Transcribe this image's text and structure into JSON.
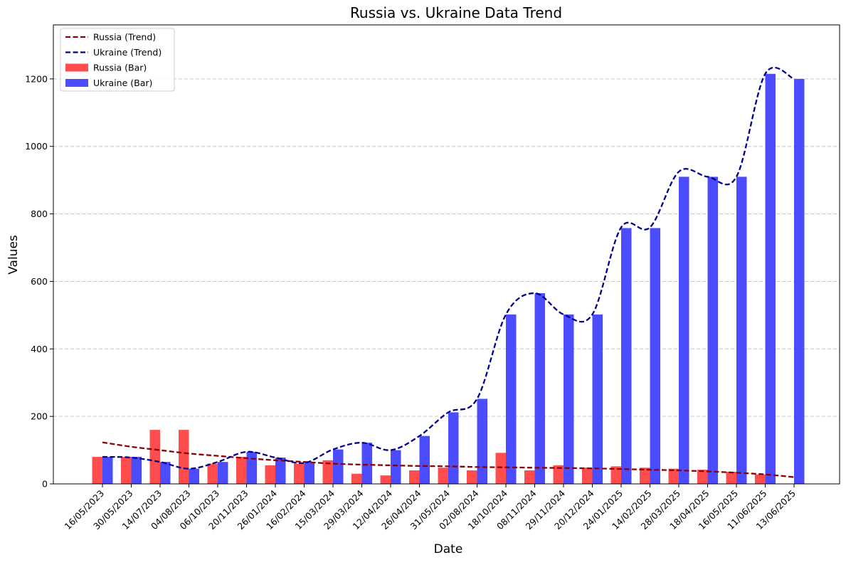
{
  "chart_data": {
    "type": "bar",
    "title": "Russia vs. Ukraine Data Trend",
    "xlabel": "Date",
    "ylabel": "Values",
    "ylim": [
      0,
      1360
    ],
    "yticks": [
      0,
      200,
      400,
      600,
      800,
      1000,
      1200
    ],
    "grid": "y-dashed",
    "legend_position": "top-left",
    "categories": [
      "16/05/2023",
      "30/05/2023",
      "14/07/2023",
      "04/08/2023",
      "06/10/2023",
      "20/11/2023",
      "26/01/2024",
      "16/02/2024",
      "15/03/2024",
      "29/03/2024",
      "12/04/2024",
      "26/04/2024",
      "31/05/2024",
      "02/08/2024",
      "18/10/2024",
      "08/11/2024",
      "29/11/2024",
      "20/12/2024",
      "24/01/2025",
      "14/02/2025",
      "28/03/2025",
      "18/04/2025",
      "16/05/2025",
      "11/06/2025",
      "13/06/2025"
    ],
    "series": [
      {
        "name": "Russia (Bar)",
        "kind": "bar",
        "color": "#ff4c4c",
        "values": [
          80,
          80,
          160,
          160,
          60,
          80,
          55,
          60,
          70,
          30,
          25,
          40,
          48,
          40,
          92,
          40,
          55,
          48,
          52,
          48,
          45,
          42,
          36,
          28,
          0
        ]
      },
      {
        "name": "Ukraine (Bar)",
        "kind": "bar",
        "color": "#4c4cff",
        "values": [
          80,
          80,
          65,
          45,
          65,
          95,
          78,
          65,
          102,
          122,
          100,
          142,
          212,
          252,
          502,
          565,
          502,
          502,
          758,
          758,
          910,
          910,
          910,
          1215,
          1200
        ]
      },
      {
        "name": "Russia (Trend)",
        "kind": "line",
        "style": "dashed",
        "color": "#8b0000",
        "values": [
          123,
          110,
          100,
          90,
          83,
          76,
          70,
          65,
          60,
          57,
          55,
          53,
          52,
          50,
          49,
          48,
          47,
          46,
          44,
          42,
          40,
          37,
          33,
          28,
          20
        ]
      },
      {
        "name": "Ukraine (Trend)",
        "kind": "line",
        "style": "dashed",
        "color": "#00008b",
        "values": [
          80,
          78,
          65,
          45,
          65,
          95,
          78,
          62,
          102,
          122,
          100,
          142,
          212,
          252,
          502,
          565,
          502,
          502,
          760,
          760,
          925,
          910,
          910,
          1215,
          1200
        ]
      }
    ]
  }
}
